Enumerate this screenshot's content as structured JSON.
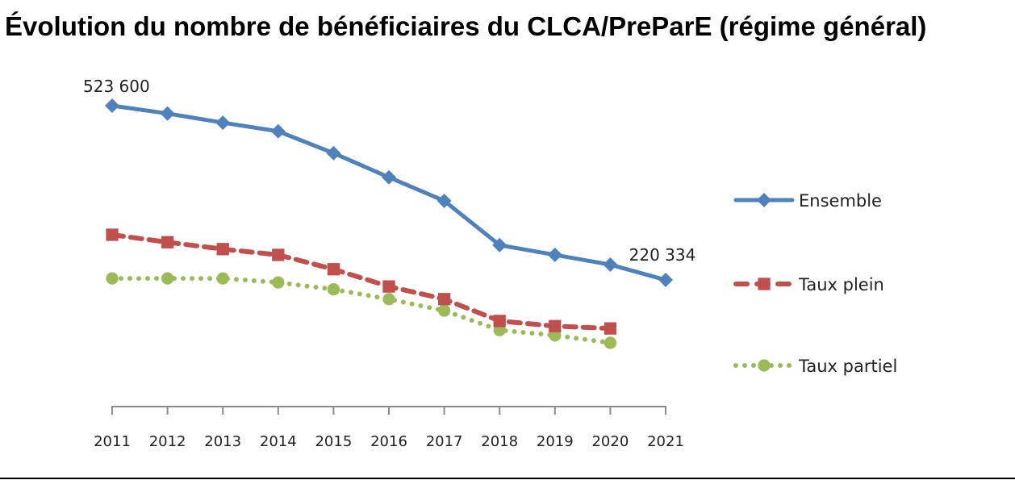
{
  "chart_data": {
    "type": "line",
    "title": "Évolution du nombre de bénéficiaires du CLCA/PreParE (régime général)",
    "xlabel": "",
    "ylabel": "",
    "x": [
      "2011",
      "2012",
      "2013",
      "2014",
      "2015",
      "2016",
      "2017",
      "2018",
      "2019",
      "2020",
      "2021"
    ],
    "ylim": [
      0,
      523600
    ],
    "grid": false,
    "legend_position": "right",
    "series": [
      {
        "name": "Ensemble",
        "color": "#4F81BD",
        "line_style": "solid",
        "marker": "diamond",
        "values": [
          523600,
          510000,
          494000,
          479000,
          441000,
          399000,
          358000,
          281000,
          264000,
          247000,
          220334
        ]
      },
      {
        "name": "Taux plein",
        "color": "#C0504D",
        "line_style": "dashed",
        "marker": "square",
        "values": [
          299000,
          286000,
          274000,
          264000,
          239000,
          209000,
          187000,
          149000,
          140000,
          136000,
          null
        ]
      },
      {
        "name": "Taux partiel",
        "color": "#9BBB59",
        "line_style": "dotted",
        "marker": "circle",
        "values": [
          223000,
          223000,
          223000,
          216000,
          204000,
          187000,
          167000,
          133000,
          124000,
          111000,
          null
        ]
      }
    ],
    "annotations": [
      {
        "series": "Ensemble",
        "x": "2011",
        "text": "523 600"
      },
      {
        "series": "Ensemble",
        "x": "2021",
        "text": "220 334"
      }
    ]
  }
}
